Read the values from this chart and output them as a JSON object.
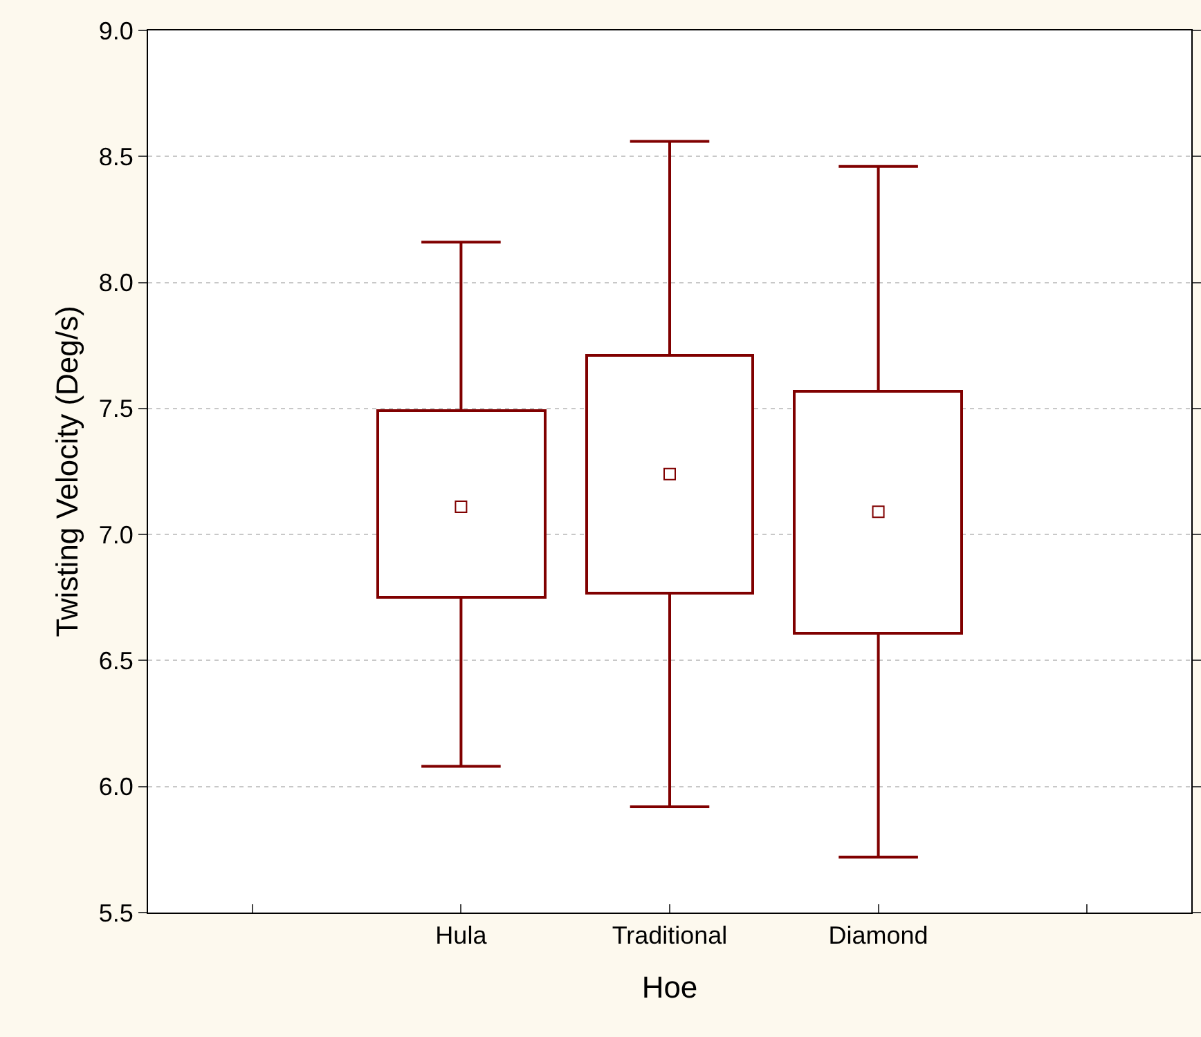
{
  "chart_data": {
    "type": "box",
    "xlabel": "Hoe",
    "ylabel": "Twisting Velocity (Deg/s)",
    "categories": [
      "Hula",
      "Traditional",
      "Diamond"
    ],
    "color": "#800000",
    "marker": "square",
    "ylim": [
      5.5,
      9.0
    ],
    "yticks": [
      {
        "value": 5.5,
        "label": "5.5"
      },
      {
        "value": 6.0,
        "label": "6.0"
      },
      {
        "value": 6.5,
        "label": "6.5"
      },
      {
        "value": 7.0,
        "label": "7.0"
      },
      {
        "value": 7.5,
        "label": "7.5"
      },
      {
        "value": 8.0,
        "label": "8.0"
      },
      {
        "value": 8.5,
        "label": "8.5"
      },
      {
        "value": 9.0,
        "label": "9.0"
      }
    ],
    "grid": "y",
    "boxes": [
      {
        "low": 6.08,
        "q1": 6.75,
        "median": 7.11,
        "q3": 7.49,
        "high": 8.16
      },
      {
        "low": 5.92,
        "q1": 6.77,
        "median": 7.24,
        "q3": 7.71,
        "high": 8.56
      },
      {
        "low": 5.72,
        "q1": 6.61,
        "median": 7.09,
        "q3": 7.57,
        "high": 8.46
      }
    ]
  }
}
